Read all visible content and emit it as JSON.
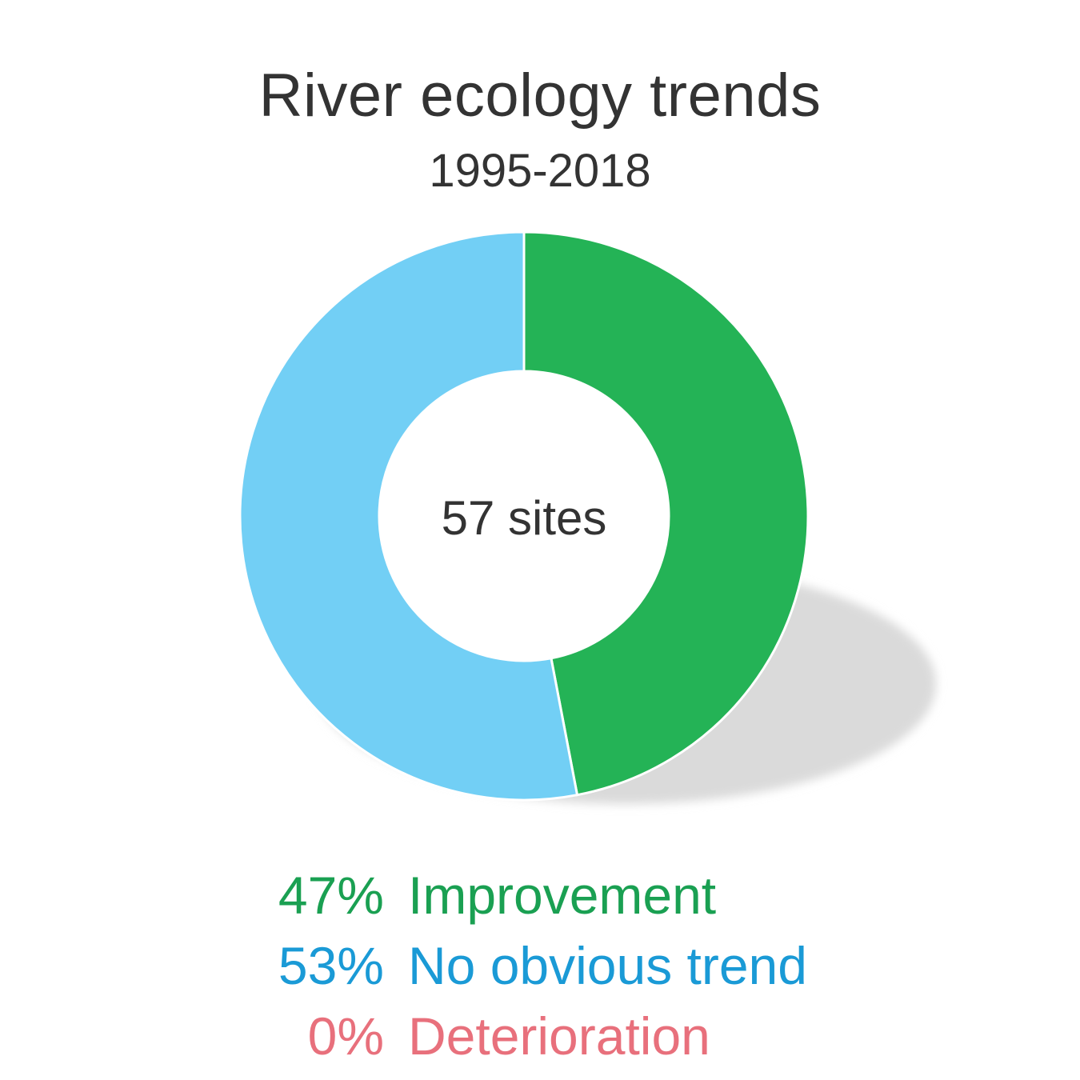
{
  "chart_data": {
    "type": "pie",
    "title": "River ecology trends",
    "subtitle": "1995-2018",
    "center_label": "57 sites",
    "categories": [
      "Improvement",
      "No obvious trend",
      "Deterioration"
    ],
    "values": [
      47,
      53,
      0
    ],
    "percent_labels": [
      "47%",
      "53%",
      "0%"
    ],
    "colors": [
      "#24b356",
      "#72cff5",
      "#e8707c"
    ],
    "legend_text_colors": [
      "#1aa052",
      "#1a9ad6",
      "#e8707c"
    ],
    "legend_position": "bottom"
  }
}
